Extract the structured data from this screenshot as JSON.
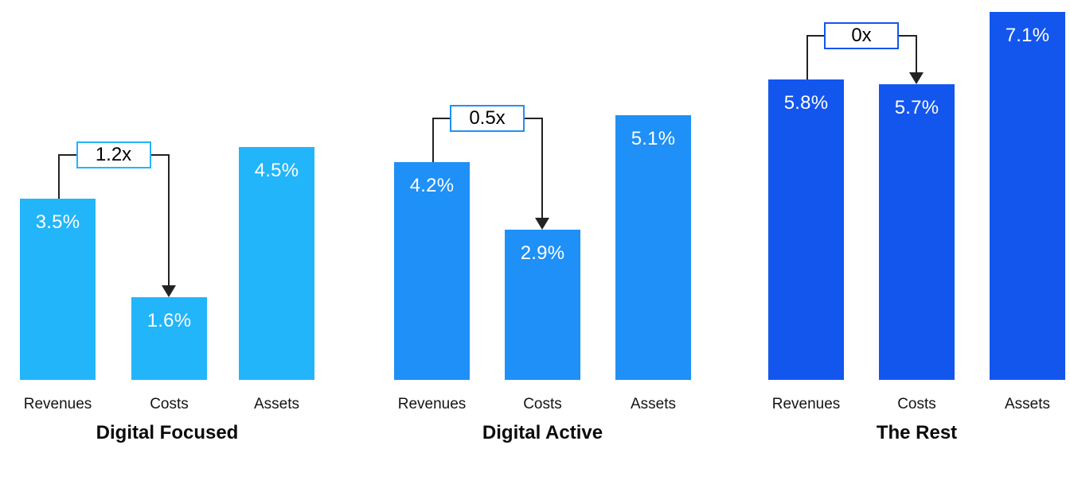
{
  "chart_data": {
    "type": "bar",
    "title": "",
    "xlabel": "",
    "ylabel": "",
    "value_unit": "%",
    "grid": false,
    "legend": false,
    "ylim": [
      0,
      7.5
    ],
    "categories": [
      "Revenues",
      "Costs",
      "Assets"
    ],
    "groups": [
      {
        "title": "Digital Focused",
        "color": "#22B5FA",
        "multiplier": "1.2x",
        "values": [
          3.5,
          1.6,
          4.5
        ],
        "bar_labels": [
          "3.5%",
          "1.6%",
          "4.5%"
        ]
      },
      {
        "title": "Digital Active",
        "color": "#1E90F7",
        "multiplier": "0.5x",
        "values": [
          4.2,
          2.9,
          5.1
        ],
        "bar_labels": [
          "4.2%",
          "2.9%",
          "5.1%"
        ]
      },
      {
        "title": "The Rest",
        "color": "#1356EE",
        "multiplier": "0x",
        "values": [
          5.8,
          5.7,
          7.1
        ],
        "bar_labels": [
          "5.8%",
          "5.7%",
          "7.1%"
        ]
      }
    ],
    "annotation_style": {
      "connector_color": "#232323",
      "box_background": "#FFFFFF",
      "value_text_color": "#FFFFFF",
      "category_text_color": "#141414"
    }
  }
}
